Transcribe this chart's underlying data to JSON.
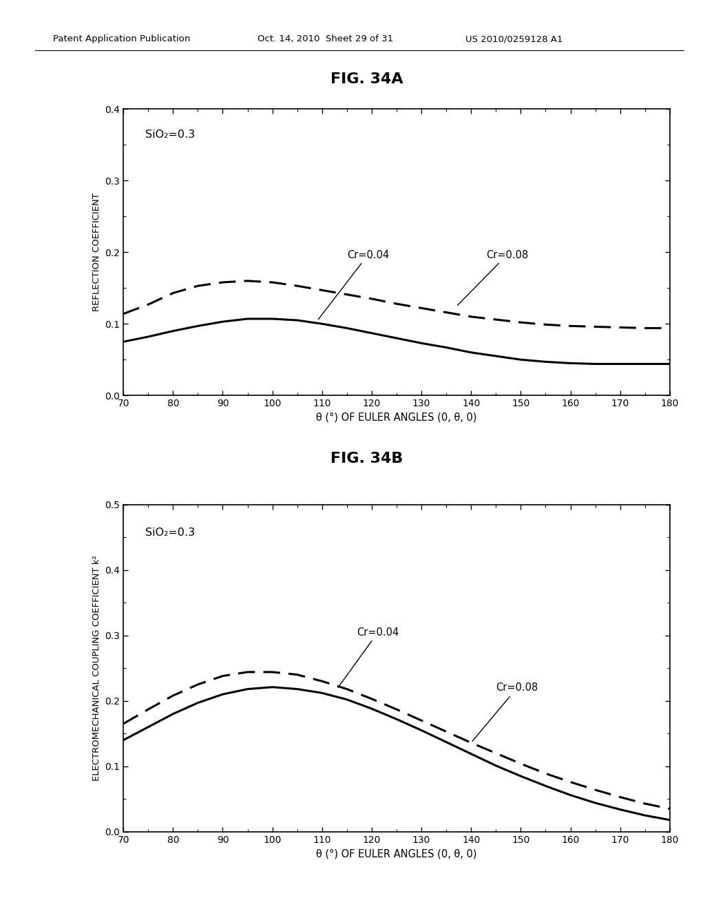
{
  "fig_title_a": "FIG. 34A",
  "fig_title_b": "FIG. 34B",
  "header_left": "Patent Application Publication",
  "header_mid": "Oct. 14, 2010  Sheet 29 of 31",
  "header_right": "US 2010/0259128 A1",
  "xlabel": "θ (°) OF EULER ANGLES (0, θ, 0)",
  "ylabel_a": "REFLECTION COEFFICIENT",
  "ylabel_b": "ELECTROMECHANICAL COUPLING COEFFICIENT k²",
  "sio2_label": "SiO₂=0.3",
  "xmin": 70,
  "xmax": 180,
  "xticks": [
    70,
    80,
    90,
    100,
    110,
    120,
    130,
    140,
    150,
    160,
    170,
    180
  ],
  "ylim_a": [
    0.0,
    0.4
  ],
  "yticks_a": [
    0.0,
    0.1,
    0.2,
    0.3,
    0.4
  ],
  "ylim_b": [
    0.0,
    0.5
  ],
  "yticks_b": [
    0.0,
    0.1,
    0.2,
    0.3,
    0.4,
    0.5
  ],
  "cr004_label": "Cr=0.04",
  "cr008_label": "Cr=0.08",
  "x_data": [
    70,
    75,
    80,
    85,
    90,
    95,
    100,
    105,
    110,
    115,
    120,
    125,
    130,
    135,
    140,
    145,
    150,
    155,
    160,
    165,
    170,
    175,
    180
  ],
  "a_cr008_y": [
    0.114,
    0.127,
    0.143,
    0.153,
    0.158,
    0.16,
    0.158,
    0.153,
    0.147,
    0.141,
    0.135,
    0.128,
    0.122,
    0.116,
    0.11,
    0.106,
    0.102,
    0.099,
    0.097,
    0.096,
    0.095,
    0.094,
    0.094
  ],
  "a_cr004_y": [
    0.075,
    0.082,
    0.09,
    0.097,
    0.103,
    0.107,
    0.107,
    0.105,
    0.1,
    0.094,
    0.087,
    0.08,
    0.073,
    0.067,
    0.06,
    0.055,
    0.05,
    0.047,
    0.045,
    0.044,
    0.044,
    0.044,
    0.044
  ],
  "b_cr008_y": [
    0.165,
    0.187,
    0.208,
    0.225,
    0.238,
    0.244,
    0.244,
    0.24,
    0.23,
    0.218,
    0.203,
    0.187,
    0.17,
    0.153,
    0.136,
    0.12,
    0.104,
    0.089,
    0.076,
    0.064,
    0.053,
    0.043,
    0.035
  ],
  "b_cr004_y": [
    0.14,
    0.16,
    0.18,
    0.197,
    0.21,
    0.218,
    0.221,
    0.218,
    0.212,
    0.202,
    0.188,
    0.172,
    0.155,
    0.137,
    0.119,
    0.101,
    0.085,
    0.07,
    0.056,
    0.044,
    0.034,
    0.025,
    0.018
  ],
  "background_color": "#ffffff",
  "line_color": "#000000",
  "line_width": 2.2
}
